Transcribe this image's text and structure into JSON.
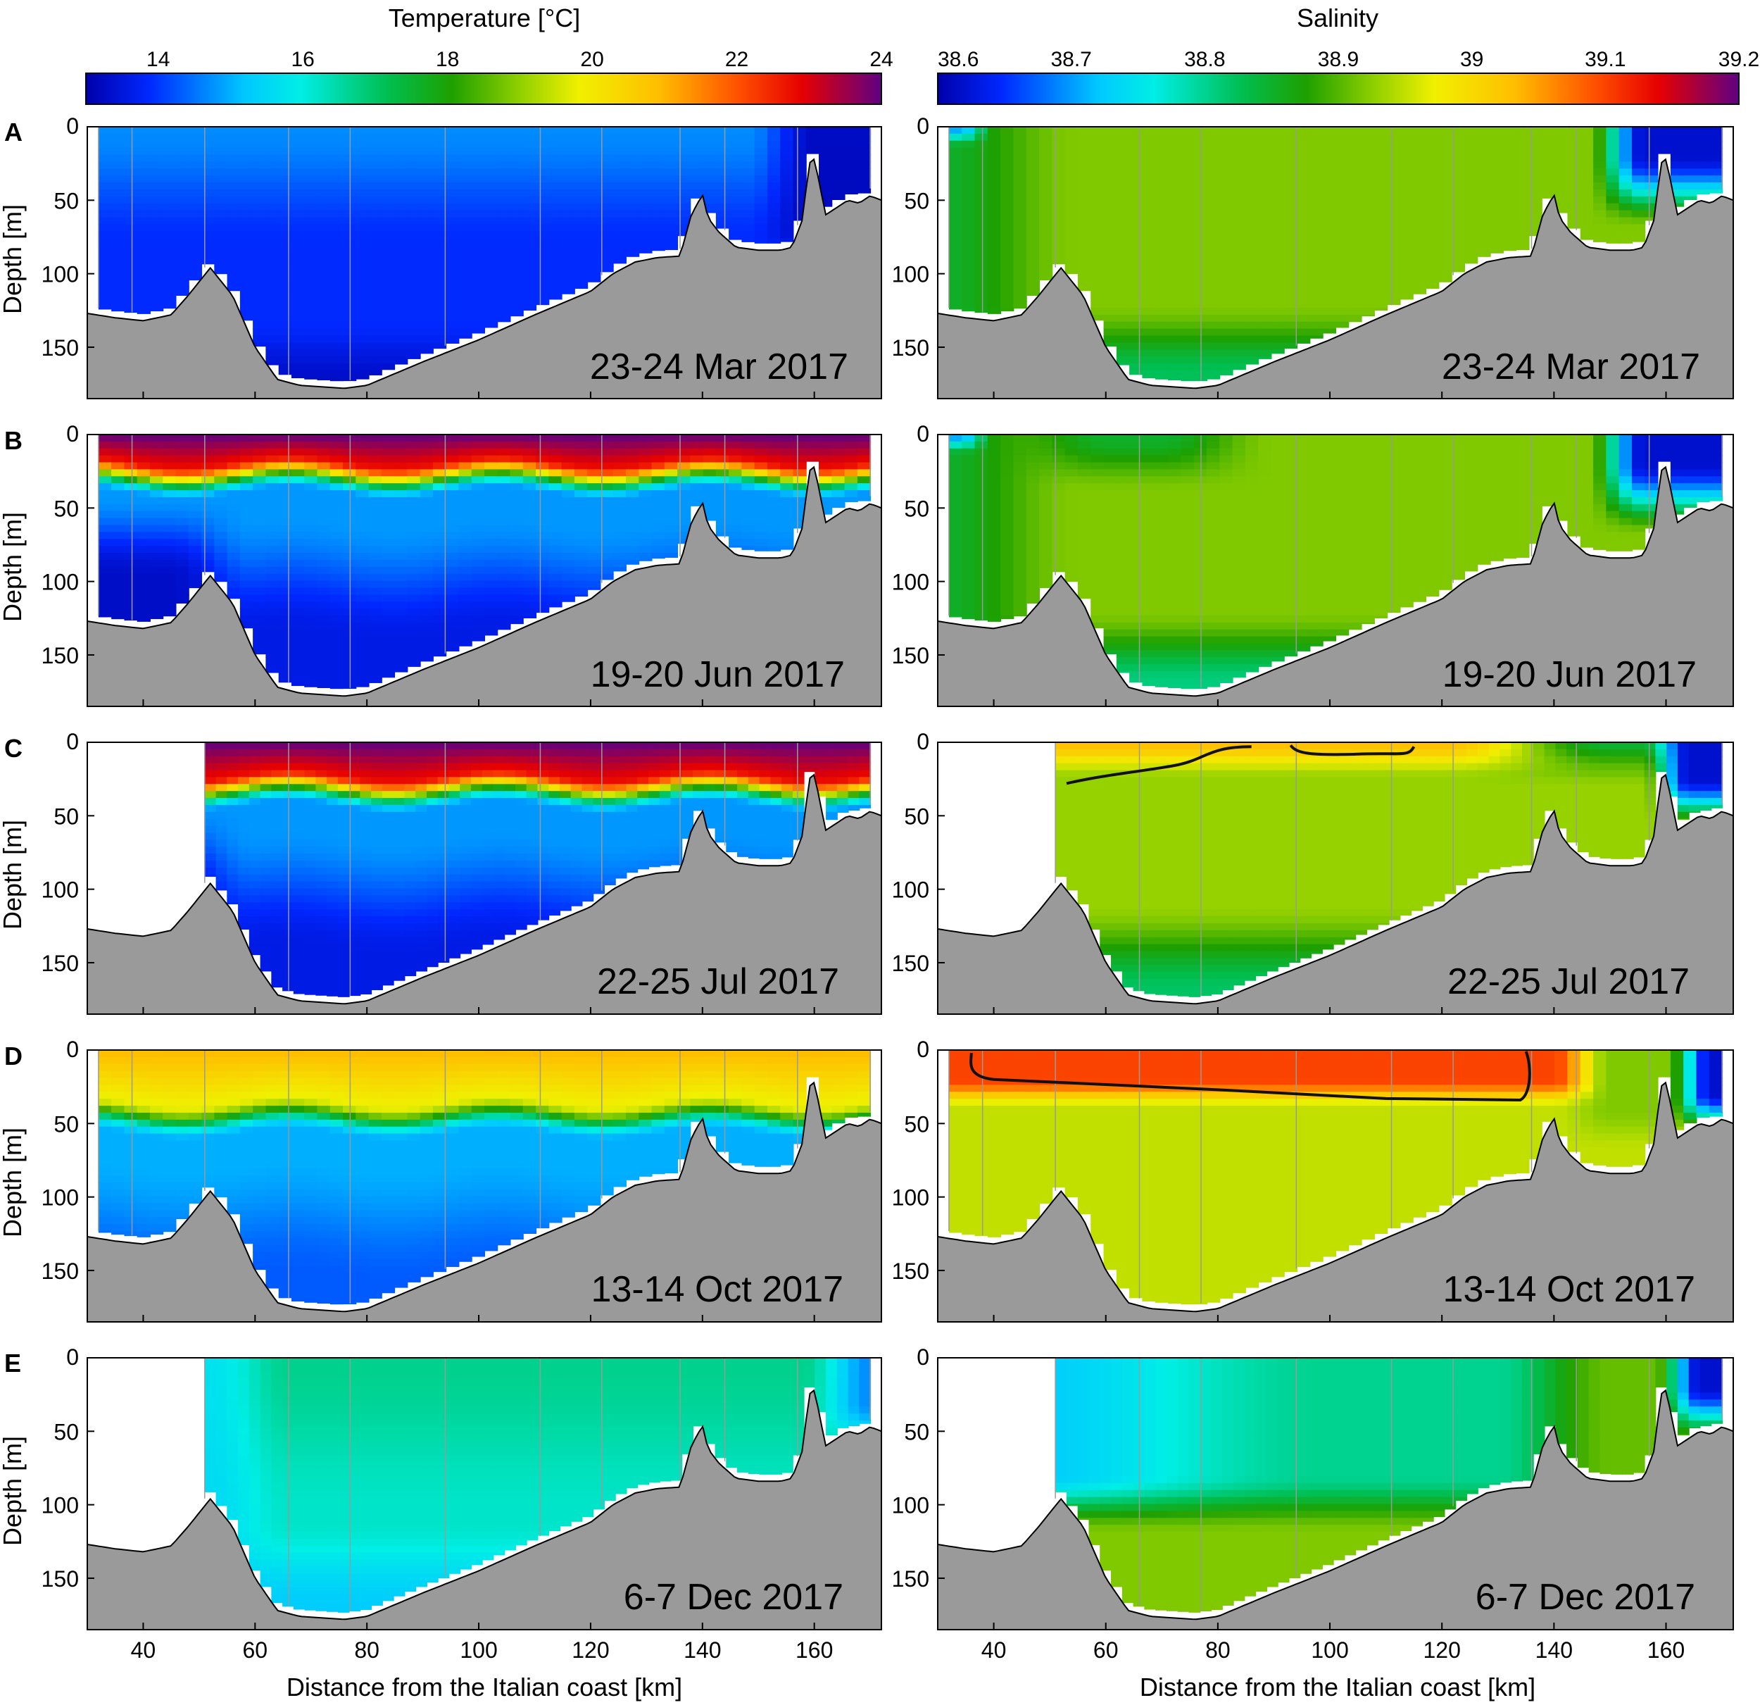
{
  "figure": {
    "colorbars": [
      {
        "label": "Temperature [°C]",
        "min": 13,
        "max": 24,
        "ticks": [
          "14",
          "16",
          "18",
          "20",
          "22",
          "24"
        ],
        "tick_values": [
          14,
          16,
          18,
          20,
          22,
          24
        ]
      },
      {
        "label": "Salinity",
        "min": 38.6,
        "max": 39.2,
        "ticks": [
          "38.6",
          "38.7",
          "38.8",
          "38.9",
          "39",
          "39.1",
          "39.2"
        ],
        "tick_values": [
          38.6,
          38.7,
          38.8,
          38.9,
          39.0,
          39.1,
          39.2
        ]
      }
    ],
    "panel_letters": [
      "A",
      "B",
      "C",
      "D",
      "E"
    ],
    "dates": [
      "23-24 Mar 2017",
      "19-20 Jun 2017",
      "22-25 Jul 2017",
      "13-14 Oct 2017",
      "6-7 Dec 2017"
    ],
    "ylabel": "Depth [m]",
    "xlabel": "Distance from the Italian coast [km]",
    "x_ticks": [
      "40",
      "60",
      "80",
      "100",
      "120",
      "140",
      "160"
    ],
    "y_ticks": [
      "0",
      "50",
      "100",
      "150"
    ],
    "colors": {
      "bathymetry": "#9a9a9a",
      "station_line": "#9a9a9a",
      "contour": "#111111"
    }
  },
  "chart_data": [
    {
      "type": "heatmap",
      "quantity": "Temperature",
      "xlim": [
        30,
        172
      ],
      "ylim": [
        185,
        0
      ],
      "x_ticks": [
        40,
        60,
        80,
        100,
        120,
        140,
        160
      ],
      "y_ticks": [
        0,
        50,
        100,
        150
      ],
      "bathymetry": {
        "x": [
          30,
          35,
          40,
          45,
          48,
          52,
          56,
          60,
          64,
          68,
          72,
          76,
          80,
          90,
          100,
          110,
          120,
          124,
          128,
          132,
          136,
          138,
          140,
          141,
          143,
          146,
          150,
          154,
          156,
          158,
          159,
          160,
          161,
          162,
          164,
          166,
          168,
          170,
          172
        ],
        "depth": [
          127,
          130,
          132,
          128,
          115,
          96,
          115,
          150,
          172,
          176,
          177,
          178,
          176,
          160,
          145,
          128,
          112,
          100,
          92,
          89,
          88,
          60,
          46,
          62,
          72,
          82,
          84,
          84,
          82,
          62,
          25,
          22,
          40,
          60,
          55,
          50,
          52,
          47,
          50
        ]
      },
      "stations": {
        "A": [
          32,
          38,
          51,
          66,
          77,
          94,
          111,
          122,
          136,
          144,
          157,
          170
        ],
        "B": [
          32,
          38,
          51,
          66,
          77,
          94,
          111,
          122,
          136,
          144,
          157,
          170
        ],
        "C": [
          51,
          66,
          77,
          94,
          111,
          122,
          136,
          144,
          157,
          170
        ],
        "D": [
          32,
          38,
          51,
          66,
          77,
          94,
          111,
          122,
          136,
          144,
          157,
          170
        ],
        "E": [
          51,
          66,
          77,
          94,
          111,
          122,
          136,
          144,
          157,
          170
        ]
      },
      "profiles": {
        "A": {
          "surface": 14.7,
          "mixed_depth": 40,
          "deep": 13.9,
          "east_surface": 13.1
        },
        "B": {
          "surface": 24.0,
          "mixed_depth": 18,
          "deep": 13.6,
          "mid": 14.8
        },
        "C": {
          "surface": 24.0,
          "mixed_depth": 22,
          "deep": 13.6,
          "mid": 14.8
        },
        "D": {
          "surface": 21.0,
          "mixed_depth": 35,
          "deep": 14.3,
          "mid": 15.0
        },
        "E": {
          "surface": 16.7,
          "mixed_depth": 120,
          "deep": 15.3,
          "east_surface": 14.7
        }
      }
    },
    {
      "type": "heatmap",
      "quantity": "Salinity",
      "xlim": [
        30,
        172
      ],
      "ylim": [
        185,
        0
      ],
      "x_ticks": [
        40,
        60,
        80,
        100,
        120,
        140,
        160
      ],
      "y_ticks": [
        0,
        50,
        100,
        150
      ],
      "profiles": {
        "A": {
          "interior": 38.92,
          "deep": 38.8,
          "east_fresh": 38.62
        },
        "B": {
          "interior": 38.92,
          "deep": 38.78,
          "east_fresh": 38.62
        },
        "C": {
          "surface": 39.03,
          "interior": 38.93,
          "deep": 38.82,
          "east_fresh": 38.62
        },
        "D": {
          "surface": 39.1,
          "interior": 38.95,
          "deep": 38.9,
          "east_fresh": 38.62
        },
        "E": {
          "interior": 38.82,
          "deep": 38.92,
          "east_fresh": 38.62
        }
      }
    }
  ]
}
